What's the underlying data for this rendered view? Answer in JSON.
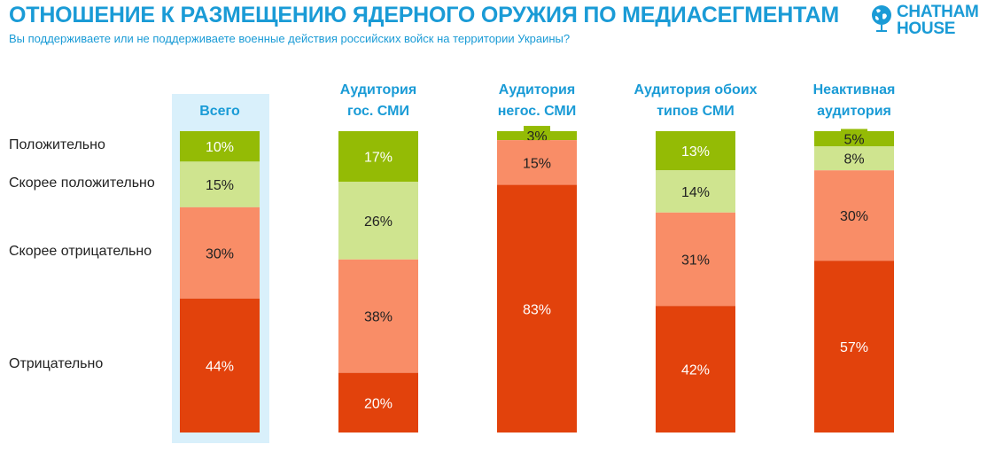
{
  "header": {
    "title": "ОТНОШЕНИЕ К РАЗМЕЩЕНИЮ ЯДЕРНОГО ОРУЖИЯ ПО МЕДИАСЕГМЕНТАМ",
    "subtitle": "Вы поддерживаете или не поддерживаете военные действия российских войск на территории Украины?"
  },
  "logo": {
    "line1": "CHATHAM",
    "line2": "HOUSE",
    "icon": "globe-icon",
    "color": "#1a9bd6"
  },
  "chart_data": {
    "type": "bar",
    "stacked": true,
    "categories": [
      "Всего",
      "Аудитория гос. СМИ",
      "Аудитория негос. СМИ",
      "Аудитория обоих типов СМИ",
      "Неактивная аудитория"
    ],
    "category_lines": [
      [
        "Всего"
      ],
      [
        "Аудитория",
        "гос. СМИ"
      ],
      [
        "Аудитория",
        "негос. СМИ"
      ],
      [
        "Аудитория обоих",
        "типов СМИ"
      ],
      [
        "Неактивная",
        "аудитория"
      ]
    ],
    "highlighted_category": "Всего",
    "series": [
      {
        "name": "Положительно",
        "color": "#94bb05",
        "label_color": "#ffffff",
        "values": [
          10,
          17,
          3,
          13,
          5
        ]
      },
      {
        "name": "Скорее положительно",
        "color": "#cfe48f",
        "label_color": "#222222",
        "values": [
          15,
          26,
          0,
          14,
          8
        ]
      },
      {
        "name": "Скорее отрицательно",
        "color": "#f98d67",
        "label_color": "#222222",
        "values": [
          30,
          38,
          15,
          31,
          30
        ]
      },
      {
        "name": "Отрицательно",
        "color": "#e2420c",
        "label_color": "#ffffff",
        "values": [
          44,
          20,
          83,
          42,
          57
        ]
      }
    ],
    "value_suffix": "%",
    "ylim": [
      0,
      100
    ],
    "legend": "left"
  }
}
